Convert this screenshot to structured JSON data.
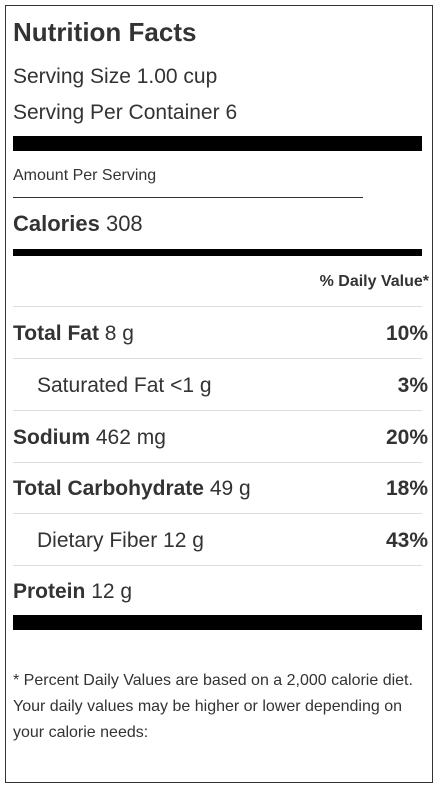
{
  "label": {
    "title": "Nutrition Facts",
    "serving_size": "Serving Size 1.00 cup",
    "servings_per_container": "Serving Per Container 6",
    "amount_per_serving": "Amount Per Serving",
    "calories_label": "Calories",
    "calories_value": "308",
    "daily_value_header": "% Daily Value*",
    "nutrients": [
      {
        "name": "Total Fat",
        "amount": "8 g",
        "percent": "10%",
        "bold": true
      },
      {
        "name": "Saturated Fat",
        "amount": "<1 g",
        "percent": "3%",
        "bold": false
      },
      {
        "name": "Sodium",
        "amount": "462 mg",
        "percent": "20%",
        "bold": true
      },
      {
        "name": "Total Carbohydrate",
        "amount": "49 g",
        "percent": "18%",
        "bold": true
      },
      {
        "name": "Dietary Fiber",
        "amount": "12 g",
        "percent": "43%",
        "bold": false
      },
      {
        "name": "Protein",
        "amount": "12 g",
        "percent": "",
        "bold": true
      }
    ],
    "footnote": "* Percent Daily Values are based on a 2,000 calorie diet. Your daily values may be higher or lower depending on your calorie needs:"
  }
}
